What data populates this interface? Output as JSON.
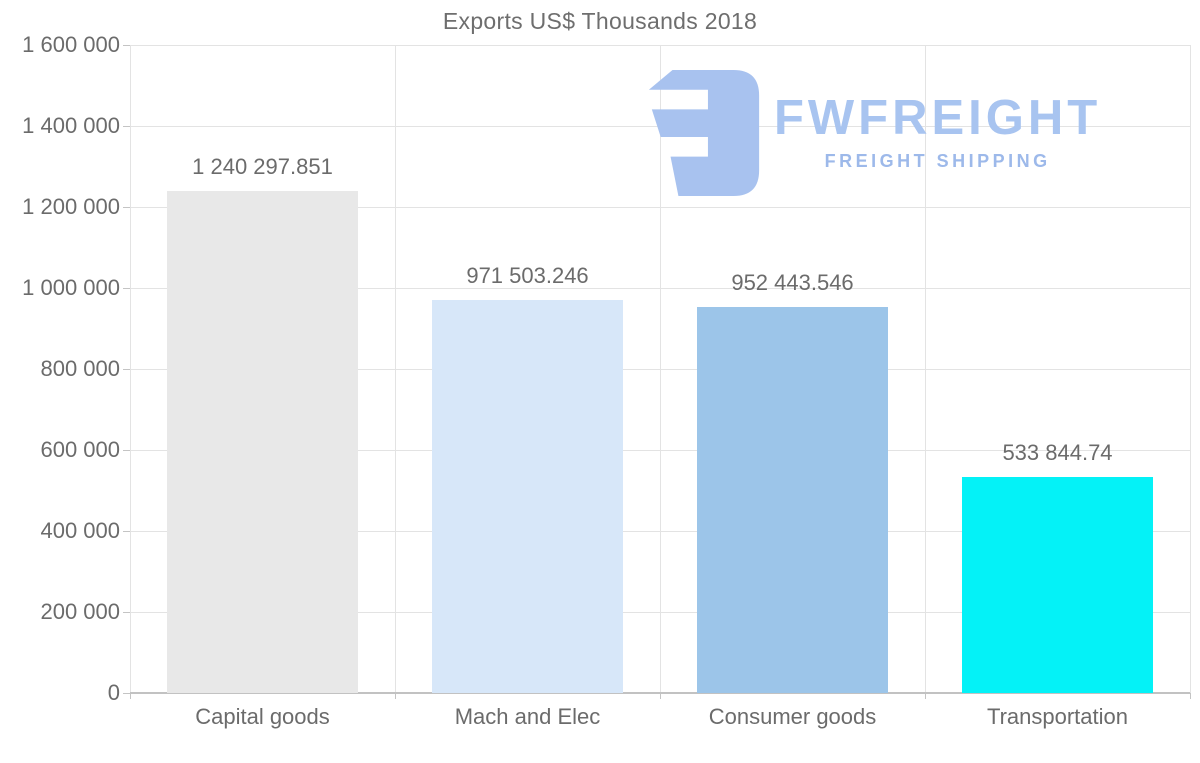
{
  "page": {
    "title": "Exports US$ Thousands 2018"
  },
  "logo": {
    "brand": "FWFREIGHT",
    "tagline": "FREIGHT SHIPPING",
    "icon": "fwfreight-e-mark",
    "color_brand": "#a8c4f0",
    "color_tagline": "#9db9ea",
    "color_icon": "#a8c2ef"
  },
  "chart_data": {
    "type": "bar",
    "title": "Exports US$ Thousands 2018",
    "categories": [
      "Capital goods",
      "Mach and Elec",
      "Consumer goods",
      "Transportation"
    ],
    "values": [
      1240297.851,
      971503.246,
      952443.546,
      533844.74
    ],
    "value_labels": [
      "1 240 297.851",
      "971 503.246",
      "952 443.546",
      "533 844.74"
    ],
    "bar_colors": [
      "#e8e8e8",
      "#d7e7f9",
      "#9cc5e9",
      "#04f2f7"
    ],
    "xlabel": "",
    "ylabel": "",
    "ylim": [
      0,
      1600000
    ],
    "ytick_step": 200000,
    "ytick_labels": [
      "0",
      "200 000",
      "400 000",
      "600 000",
      "800 000",
      "1 000 000",
      "1 200 000",
      "1 400 000",
      "1 600 000"
    ],
    "grid": true,
    "legend": false,
    "text_color": "#6b6b6b"
  }
}
